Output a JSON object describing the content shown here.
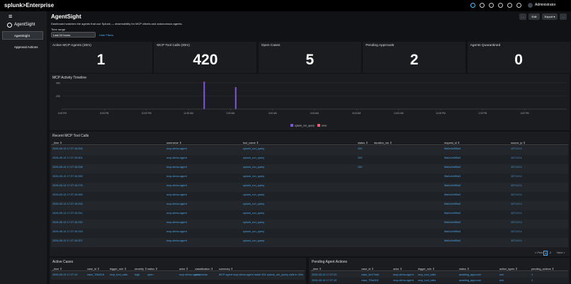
{
  "topbar": {
    "brand": "splunk>Enterprise",
    "user": "Administrator"
  },
  "sidebar": {
    "menu": "≡",
    "app": "AgentSight",
    "items": [
      "AgentSight",
      "Approval Actions"
    ]
  },
  "header": {
    "title": "AgentSight",
    "description": "Dashboard watches the agents that use Splunk — observability for MCP clients and autonomous agents.",
    "buttons": [
      "…",
      "Edit",
      "Export ▾",
      "…"
    ],
    "time_label": "Time range",
    "time_value": "Last 24 hours",
    "hide_filters": "Hide Filters"
  },
  "kpis": [
    {
      "label": "Active MCP Agents (30m)",
      "value": 1
    },
    {
      "label": "MCP Tool Calls (30m)",
      "value": 420
    },
    {
      "label": "Open Cases",
      "value": 5
    },
    {
      "label": "Pending Approvals",
      "value": 2
    },
    {
      "label": "Agents Quarantined",
      "value": 0
    }
  ],
  "timeline": {
    "type": "bar",
    "title": "MCP Activity Timeline",
    "categories": [
      "6:00 PM",
      null,
      null,
      null,
      "8:00 PM",
      null,
      null,
      null,
      "10:00 PM",
      null,
      null,
      null,
      "12:00 AM",
      null,
      null,
      null,
      "2:00 AM",
      null,
      null,
      null,
      "4:00 AM",
      null,
      null,
      null,
      "6:00 AM",
      null,
      null,
      null,
      "8:00 AM",
      null,
      null,
      null,
      "10:00 AM",
      null,
      null,
      null,
      "12:00 PM",
      null,
      null,
      null,
      "2:00 PM",
      null,
      null,
      null,
      "4:00 PM",
      null,
      null,
      null
    ],
    "ylim": [
      0,
      420
    ],
    "yticks": [
      200,
      400
    ],
    "series": [
      {
        "name": "splunk_run_query",
        "color": "#7b56db",
        "values": [
          0,
          0,
          0,
          0,
          0,
          0,
          0,
          0,
          0,
          0,
          0,
          0,
          0,
          410,
          0,
          0,
          330,
          0,
          0,
          0,
          0,
          0,
          0,
          0,
          0,
          0,
          0,
          0,
          0,
          0,
          0,
          0,
          0,
          0,
          0,
          0,
          0,
          0,
          0,
          0,
          0,
          0,
          0,
          0,
          0,
          0,
          0,
          0
        ]
      },
      {
        "name": "error",
        "color": "#e85b79",
        "values": [
          0,
          0,
          0,
          0,
          0,
          0,
          0,
          0,
          0,
          0,
          0,
          0,
          0,
          6,
          0,
          0,
          4,
          0,
          0,
          0,
          0,
          0,
          0,
          0,
          0,
          0,
          0,
          0,
          0,
          0,
          0,
          0,
          0,
          0,
          0,
          0,
          0,
          0,
          0,
          0,
          0,
          0,
          0,
          0,
          0,
          0,
          0,
          0
        ]
      }
    ]
  },
  "recent_calls": {
    "title": "Recent MCP Tool Calls",
    "columns": [
      "_time ⇕",
      "username ⇕",
      "tool_name ⇕",
      "status ⇕",
      "duration_ms ⇕",
      "request_id ⇕",
      "source_ip ⇕"
    ],
    "rows": [
      [
        "2026-05-13 17:27:15.334",
        "mcp-demo-agent",
        "splunk_run_query",
        "200",
        "",
        "5fa0c2e8f9a3",
        "127.0.0.1"
      ],
      [
        "2026-05-13 17:27:15.301",
        "mcp-demo-agent",
        "splunk_run_query",
        "200",
        "",
        "5fa0c2e8f9a3",
        "127.0.0.1"
      ],
      [
        "2026-05-13 17:27:15.298",
        "mcp-demo-agent",
        "splunk_run_query",
        "200",
        "",
        "5fa0c2e8f9a3",
        "127.0.0.1"
      ],
      [
        "2026-05-13 17:27:15.289",
        "mcp-demo-agent",
        "splunk_run_query",
        "",
        "",
        "5fa0c2e8f9a3",
        "127.0.0.1"
      ],
      [
        "2026-05-13 17:27:15.276",
        "mcp-demo-agent",
        "splunk_run_query",
        "",
        "",
        "5fa0c2e8f9a3",
        "127.0.0.1"
      ],
      [
        "2026-05-13 17:27:15.265",
        "mcp-demo-agent",
        "splunk_run_query",
        "",
        "",
        "5fa0c2e8f9a3",
        "127.0.0.1"
      ],
      [
        "2026-05-13 17:27:15.253",
        "mcp-demo-agent",
        "splunk_run_query",
        "",
        "",
        "5fa0c2e8f9a3",
        "127.0.0.1"
      ],
      [
        "2026-05-13 17:27:15.241",
        "mcp-demo-agent",
        "splunk_run_query",
        "",
        "",
        "5fa0c2e8f9a3",
        "127.0.0.1"
      ],
      [
        "2026-05-13 17:27:15.230",
        "mcp-demo-agent",
        "splunk_run_query",
        "",
        "",
        "5fa0c2e8f9a3",
        "127.0.0.1"
      ],
      [
        "2026-05-13 17:27:15.218",
        "mcp-demo-agent",
        "splunk_run_query",
        "",
        "",
        "5fa0c2e8f9a3",
        "127.0.0.1"
      ],
      [
        "2026-05-13 17:27:15.207",
        "mcp-demo-agent",
        "splunk_run_query",
        "",
        "",
        "5fa0c2e8f9a3",
        "127.0.0.1"
      ]
    ],
    "pagination": [
      "« Prev",
      "1",
      "2",
      "Next »"
    ]
  },
  "active_cases": {
    "title": "Active Cases",
    "columns": [
      "_time ⇕",
      "case_id ⇕",
      "trigger_rule ⇕",
      "severity ⇕",
      "status ⇕",
      "actor ⇕",
      "classification ⇕",
      "summary ⇕"
    ],
    "rows": [
      [
        "2026-05-13 17:27:14",
        "case_7f3a918",
        "mcp_tool_calls",
        "high",
        "open",
        "mcp-demo-agent",
        "suspicious",
        "MCP agent mcp-demo-agent made 331 splunk_run_query calls in 30m"
      ]
    ]
  },
  "pending_actions": {
    "title": "Pending Agent Actions",
    "columns": [
      "_time ⇕",
      "case_id ⇕",
      "actor ⇕",
      "trigger_rule ⇕",
      "status ⇕",
      "action_types ⇕",
      "pending_actions ⇕"
    ],
    "rows": [
      [
        "2026-05-13 17:27:22",
        "case_4e17bd4",
        "mcp-demo-agent",
        "mcp_tool_calls",
        "awaiting_approval",
        "ssh",
        "1"
      ],
      [
        "2026-05-13 17:27:15",
        "case_7f3a918",
        "mcp-demo-agent",
        "mcp_tool_calls",
        "awaiting_approval",
        "ssh",
        "1"
      ]
    ]
  }
}
